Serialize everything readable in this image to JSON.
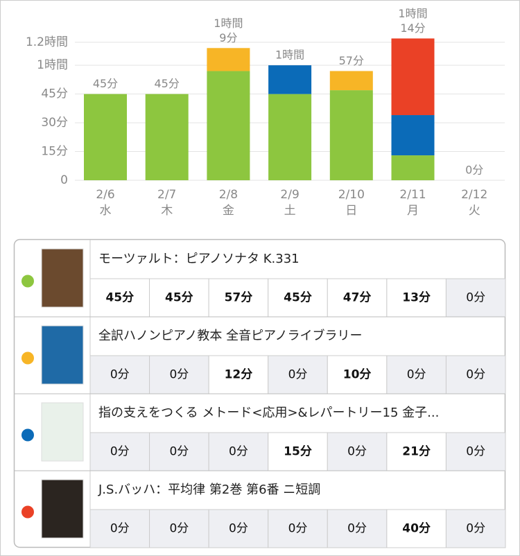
{
  "chart_data": {
    "type": "bar",
    "stacked": true,
    "categories": [
      "2/6",
      "2/7",
      "2/8",
      "2/9",
      "2/10",
      "2/11",
      "2/12"
    ],
    "weekdays": [
      "水",
      "木",
      "金",
      "土",
      "日",
      "月",
      "火"
    ],
    "series": [
      {
        "name": "モーツァルト：ピアノソナタ K.331",
        "color": "#8dc63f",
        "values": [
          45,
          45,
          57,
          45,
          47,
          13,
          0
        ]
      },
      {
        "name": "全訳ハノンピアノ教本  全音ピアノライブラリー",
        "color": "#f7b526",
        "values": [
          0,
          0,
          12,
          0,
          10,
          0,
          0
        ]
      },
      {
        "name": "指の支えをつくる メトード<応用>&レパートリー15 金子...",
        "color": "#0b6bb8",
        "values": [
          0,
          0,
          0,
          15,
          0,
          21,
          0
        ]
      },
      {
        "name": "J.S.バッハ：平均律 第2巻 第6番 ニ短調",
        "color": "#ea4126",
        "values": [
          0,
          0,
          0,
          0,
          0,
          40,
          0
        ]
      }
    ],
    "totals": {
      "values": [
        45,
        45,
        69,
        60,
        57,
        74,
        0
      ],
      "value_labels": [
        [
          "45分"
        ],
        [
          "45分"
        ],
        [
          "1時間",
          "9分"
        ],
        [
          "1時間"
        ],
        [
          "57分"
        ],
        [
          "1時間",
          "14分"
        ],
        [
          "0分"
        ]
      ]
    },
    "ylim": [
      0,
      72
    ],
    "yticks": [
      0,
      {
        "value": 15,
        "label": "15分"
      },
      {
        "value": 30,
        "label": "30分"
      },
      {
        "value": 45,
        "label": "45分"
      },
      {
        "value": 60,
        "label": "1時間"
      },
      {
        "value": 72,
        "label": "1.2時間"
      }
    ],
    "grid": true
  },
  "table": {
    "rows": [
      [
        "45分",
        "45分",
        "57分",
        "45分",
        "47分",
        "13分",
        "0分"
      ],
      [
        "0分",
        "0分",
        "12分",
        "0分",
        "10分",
        "0分",
        "0分"
      ],
      [
        "0分",
        "0分",
        "0分",
        "15分",
        "0分",
        "21分",
        "0分"
      ],
      [
        "0分",
        "0分",
        "0分",
        "0分",
        "0分",
        "40分",
        "0分"
      ]
    ]
  }
}
